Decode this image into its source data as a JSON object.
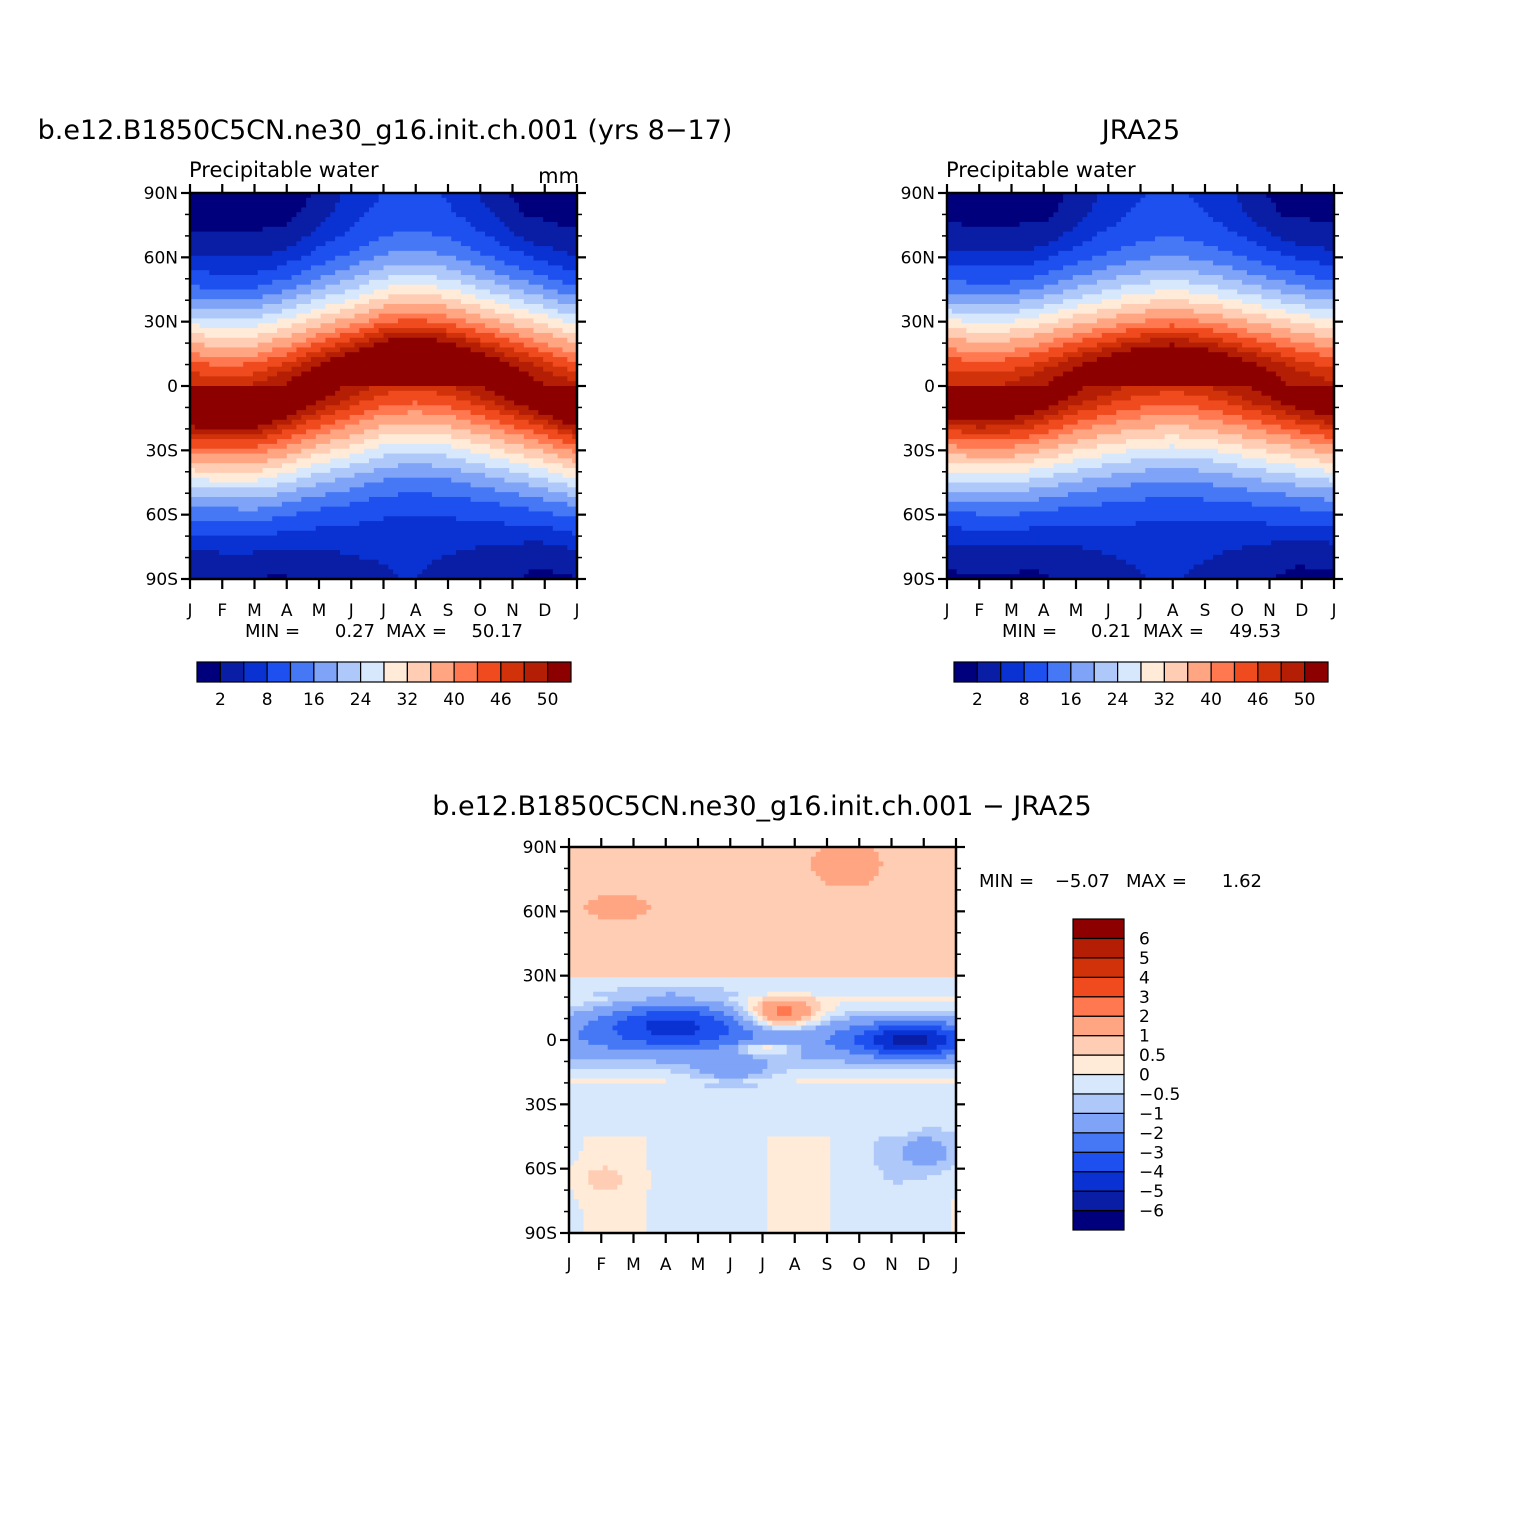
{
  "chart_data": [
    {
      "type": "heatmap",
      "title": "b.e12.B1850C5CN.ne30_g16.init.ch.001 (yrs 8−17)",
      "subtitle": "Precipitable water",
      "units": "mm",
      "x": [
        "J",
        "F",
        "M",
        "A",
        "M",
        "J",
        "J",
        "A",
        "S",
        "O",
        "N",
        "D",
        "J"
      ],
      "y": [
        "90N",
        "60N",
        "30N",
        "0",
        "30S",
        "60S",
        "90S"
      ],
      "ylim": [
        -90,
        90
      ],
      "min_label": "MIN =",
      "min_value": "0.27",
      "max_label": "MAX =",
      "max_value": "50.17",
      "field": {
        "kind": "absolute",
        "itcz_lat": [
          -5,
          -6,
          -6,
          -3,
          1,
          4,
          8,
          9,
          8,
          5,
          2,
          -1,
          -5
        ],
        "max_value": 50.2,
        "north_width": 31,
        "south_width": 33
      },
      "colorbar": {
        "orientation": "horizontal",
        "levels": [
          2,
          5,
          8,
          12,
          16,
          20,
          24,
          28,
          32,
          36,
          40,
          43,
          46,
          48,
          50
        ],
        "tick_labels": [
          "2",
          "8",
          "16",
          "24",
          "32",
          "40",
          "46",
          "50"
        ],
        "colors": [
          "#00007d",
          "#0a1ea5",
          "#0a32d2",
          "#1e50f0",
          "#4678f5",
          "#7ea3f7",
          "#aec8fa",
          "#d7e8fd",
          "#ffebd7",
          "#ffcdb4",
          "#ffa582",
          "#ff7850",
          "#f04b1e",
          "#d2320a",
          "#b41e05",
          "#8c0000"
        ]
      }
    },
    {
      "type": "heatmap",
      "title": "JRA25",
      "subtitle": "Precipitable water",
      "x": [
        "J",
        "F",
        "M",
        "A",
        "M",
        "J",
        "J",
        "A",
        "S",
        "O",
        "N",
        "D",
        "J"
      ],
      "y": [
        "90N",
        "60N",
        "30N",
        "0",
        "30S",
        "60S",
        "90S"
      ],
      "ylim": [
        -90,
        90
      ],
      "min_label": "MIN =",
      "min_value": "0.21",
      "max_label": "MAX =",
      "max_value": "49.53",
      "field": {
        "kind": "absolute",
        "itcz_lat": [
          -2,
          -3,
          -3,
          -1,
          2,
          4,
          6,
          7,
          6,
          4,
          2,
          0,
          -2
        ],
        "max_value": 49.5,
        "north_width": 31,
        "south_width": 33
      },
      "colorbar": {
        "orientation": "horizontal",
        "levels": [
          2,
          5,
          8,
          12,
          16,
          20,
          24,
          28,
          32,
          36,
          40,
          43,
          46,
          48,
          50
        ],
        "tick_labels": [
          "2",
          "8",
          "16",
          "24",
          "32",
          "40",
          "46",
          "50"
        ],
        "colors": [
          "#00007d",
          "#0a1ea5",
          "#0a32d2",
          "#1e50f0",
          "#4678f5",
          "#7ea3f7",
          "#aec8fa",
          "#d7e8fd",
          "#ffebd7",
          "#ffcdb4",
          "#ffa582",
          "#ff7850",
          "#f04b1e",
          "#d2320a",
          "#b41e05",
          "#8c0000"
        ]
      }
    },
    {
      "type": "heatmap",
      "title": "b.e12.B1850C5CN.ne30_g16.init.ch.001 − JRA25",
      "x": [
        "J",
        "F",
        "M",
        "A",
        "M",
        "J",
        "J",
        "A",
        "S",
        "O",
        "N",
        "D",
        "J"
      ],
      "y": [
        "90N",
        "60N",
        "30N",
        "0",
        "30S",
        "60S",
        "90S"
      ],
      "ylim": [
        -90,
        90
      ],
      "min_label": "MIN =",
      "min_value": "−5.07",
      "max_label": "MAX =",
      "max_value": "1.62",
      "field": {
        "kind": "difference",
        "features": [
          {
            "x": 3.2,
            "lat": 8,
            "dx": 2.3,
            "dlat": 11,
            "amp": -3.3
          },
          {
            "x": 10.6,
            "lat": 0,
            "dx": 1.8,
            "dlat": 8,
            "amp": -3.8
          },
          {
            "x": 6.6,
            "lat": 12,
            "dx": 1.1,
            "dlat": 7,
            "amp": 3.0
          },
          {
            "x": 6.1,
            "lat": -4,
            "dx": 1.0,
            "dlat": 3,
            "amp": 1.8
          },
          {
            "x": 5.0,
            "lat": -15,
            "dx": 1.3,
            "dlat": 5,
            "amp": -1.2
          },
          {
            "x": 8.6,
            "lat": 82,
            "dx": 1.0,
            "dlat": 10,
            "amp": 1.3
          },
          {
            "x": 1.5,
            "lat": 62,
            "dx": 1.2,
            "dlat": 7,
            "amp": 0.8
          },
          {
            "x": 1.0,
            "lat": -65,
            "dx": 0.9,
            "dlat": 8,
            "amp": 0.6
          },
          {
            "x": 11.3,
            "lat": -52,
            "dx": 1.2,
            "dlat": 10,
            "amp": -1.1
          }
        ]
      },
      "colorbar": {
        "orientation": "vertical",
        "levels": [
          -6,
          -5,
          -4,
          -3,
          -2,
          -1,
          -0.5,
          0,
          0.5,
          1,
          2,
          3,
          4,
          5,
          6
        ],
        "tick_labels": [
          "6",
          "5",
          "4",
          "3",
          "2",
          "1",
          "0.5",
          "0",
          "−0.5",
          "−1",
          "−2",
          "−3",
          "−4",
          "−5",
          "−6"
        ],
        "colors": [
          "#00007d",
          "#0a1ea5",
          "#0a32d2",
          "#1e50f0",
          "#4678f5",
          "#7ea3f7",
          "#aec8fa",
          "#d7e8fd",
          "#ffebd7",
          "#ffcdb4",
          "#ffa582",
          "#ff7850",
          "#f04b1e",
          "#d2320a",
          "#b41e05",
          "#8c0000"
        ]
      }
    }
  ]
}
